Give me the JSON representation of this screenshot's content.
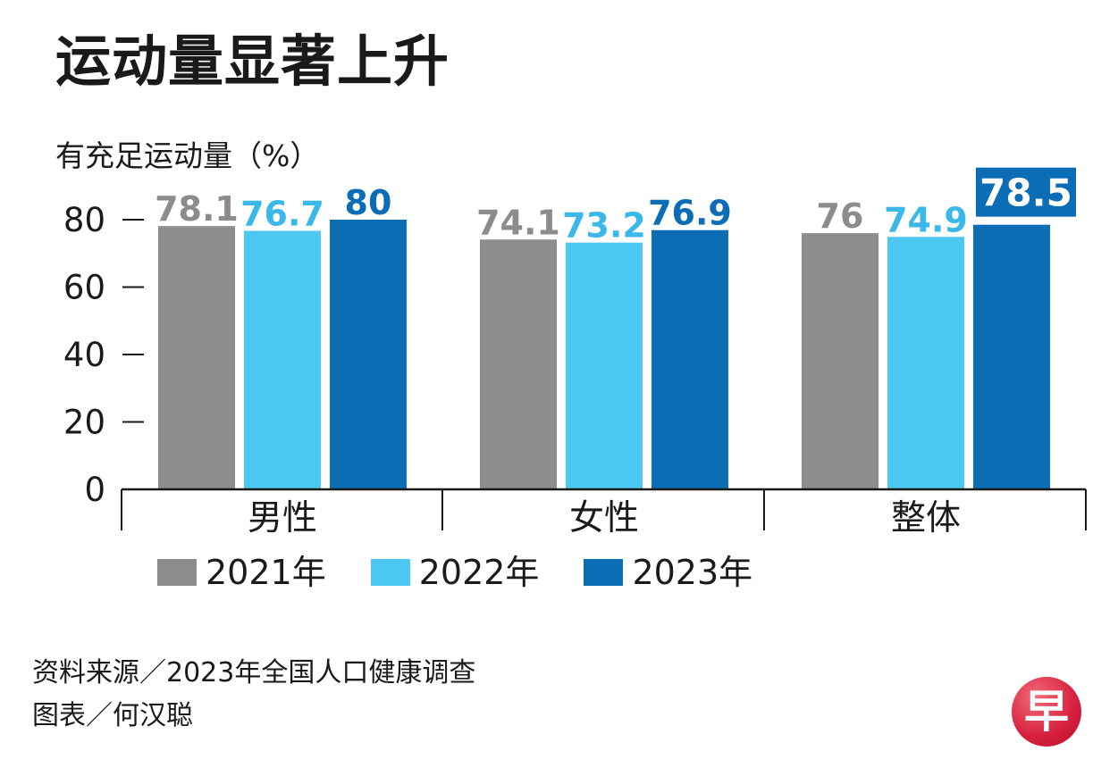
{
  "header": {
    "title": "运动量显著上升",
    "unit_label": "有充足运动量（%）"
  },
  "chart_data": {
    "type": "bar",
    "title": "运动量显著上升",
    "ylabel": "有充足运动量（%）",
    "xlabel": "",
    "ylim": [
      0,
      80
    ],
    "yticks": [
      0,
      20,
      40,
      60,
      80
    ],
    "categories": [
      "男性",
      "女性",
      "整体"
    ],
    "series": [
      {
        "name": "2021年",
        "values": [
          78.1,
          74.1,
          76
        ],
        "labels": [
          "78.1",
          "74.1",
          "76"
        ],
        "color": "#8c8c8c",
        "label_color": "#8c8c8c"
      },
      {
        "name": "2022年",
        "values": [
          76.7,
          73.2,
          74.9
        ],
        "labels": [
          "76.7",
          "73.2",
          "74.9"
        ],
        "color": "#4dc8f2",
        "label_color": "#3ab8ea"
      },
      {
        "name": "2023年",
        "values": [
          80,
          76.9,
          78.5
        ],
        "labels": [
          "80",
          "76.9",
          "78.5"
        ],
        "color": "#0a6db5",
        "label_color": "#0a6db5"
      }
    ],
    "highlight": {
      "series": 2,
      "category": 2
    },
    "legend_position": "bottom-left"
  },
  "footer": {
    "source": "资料来源／2023年全国人口健康调查",
    "credit": "图表／何汉聪"
  },
  "logo": {
    "glyph": "早",
    "color": "#d61f3d"
  }
}
